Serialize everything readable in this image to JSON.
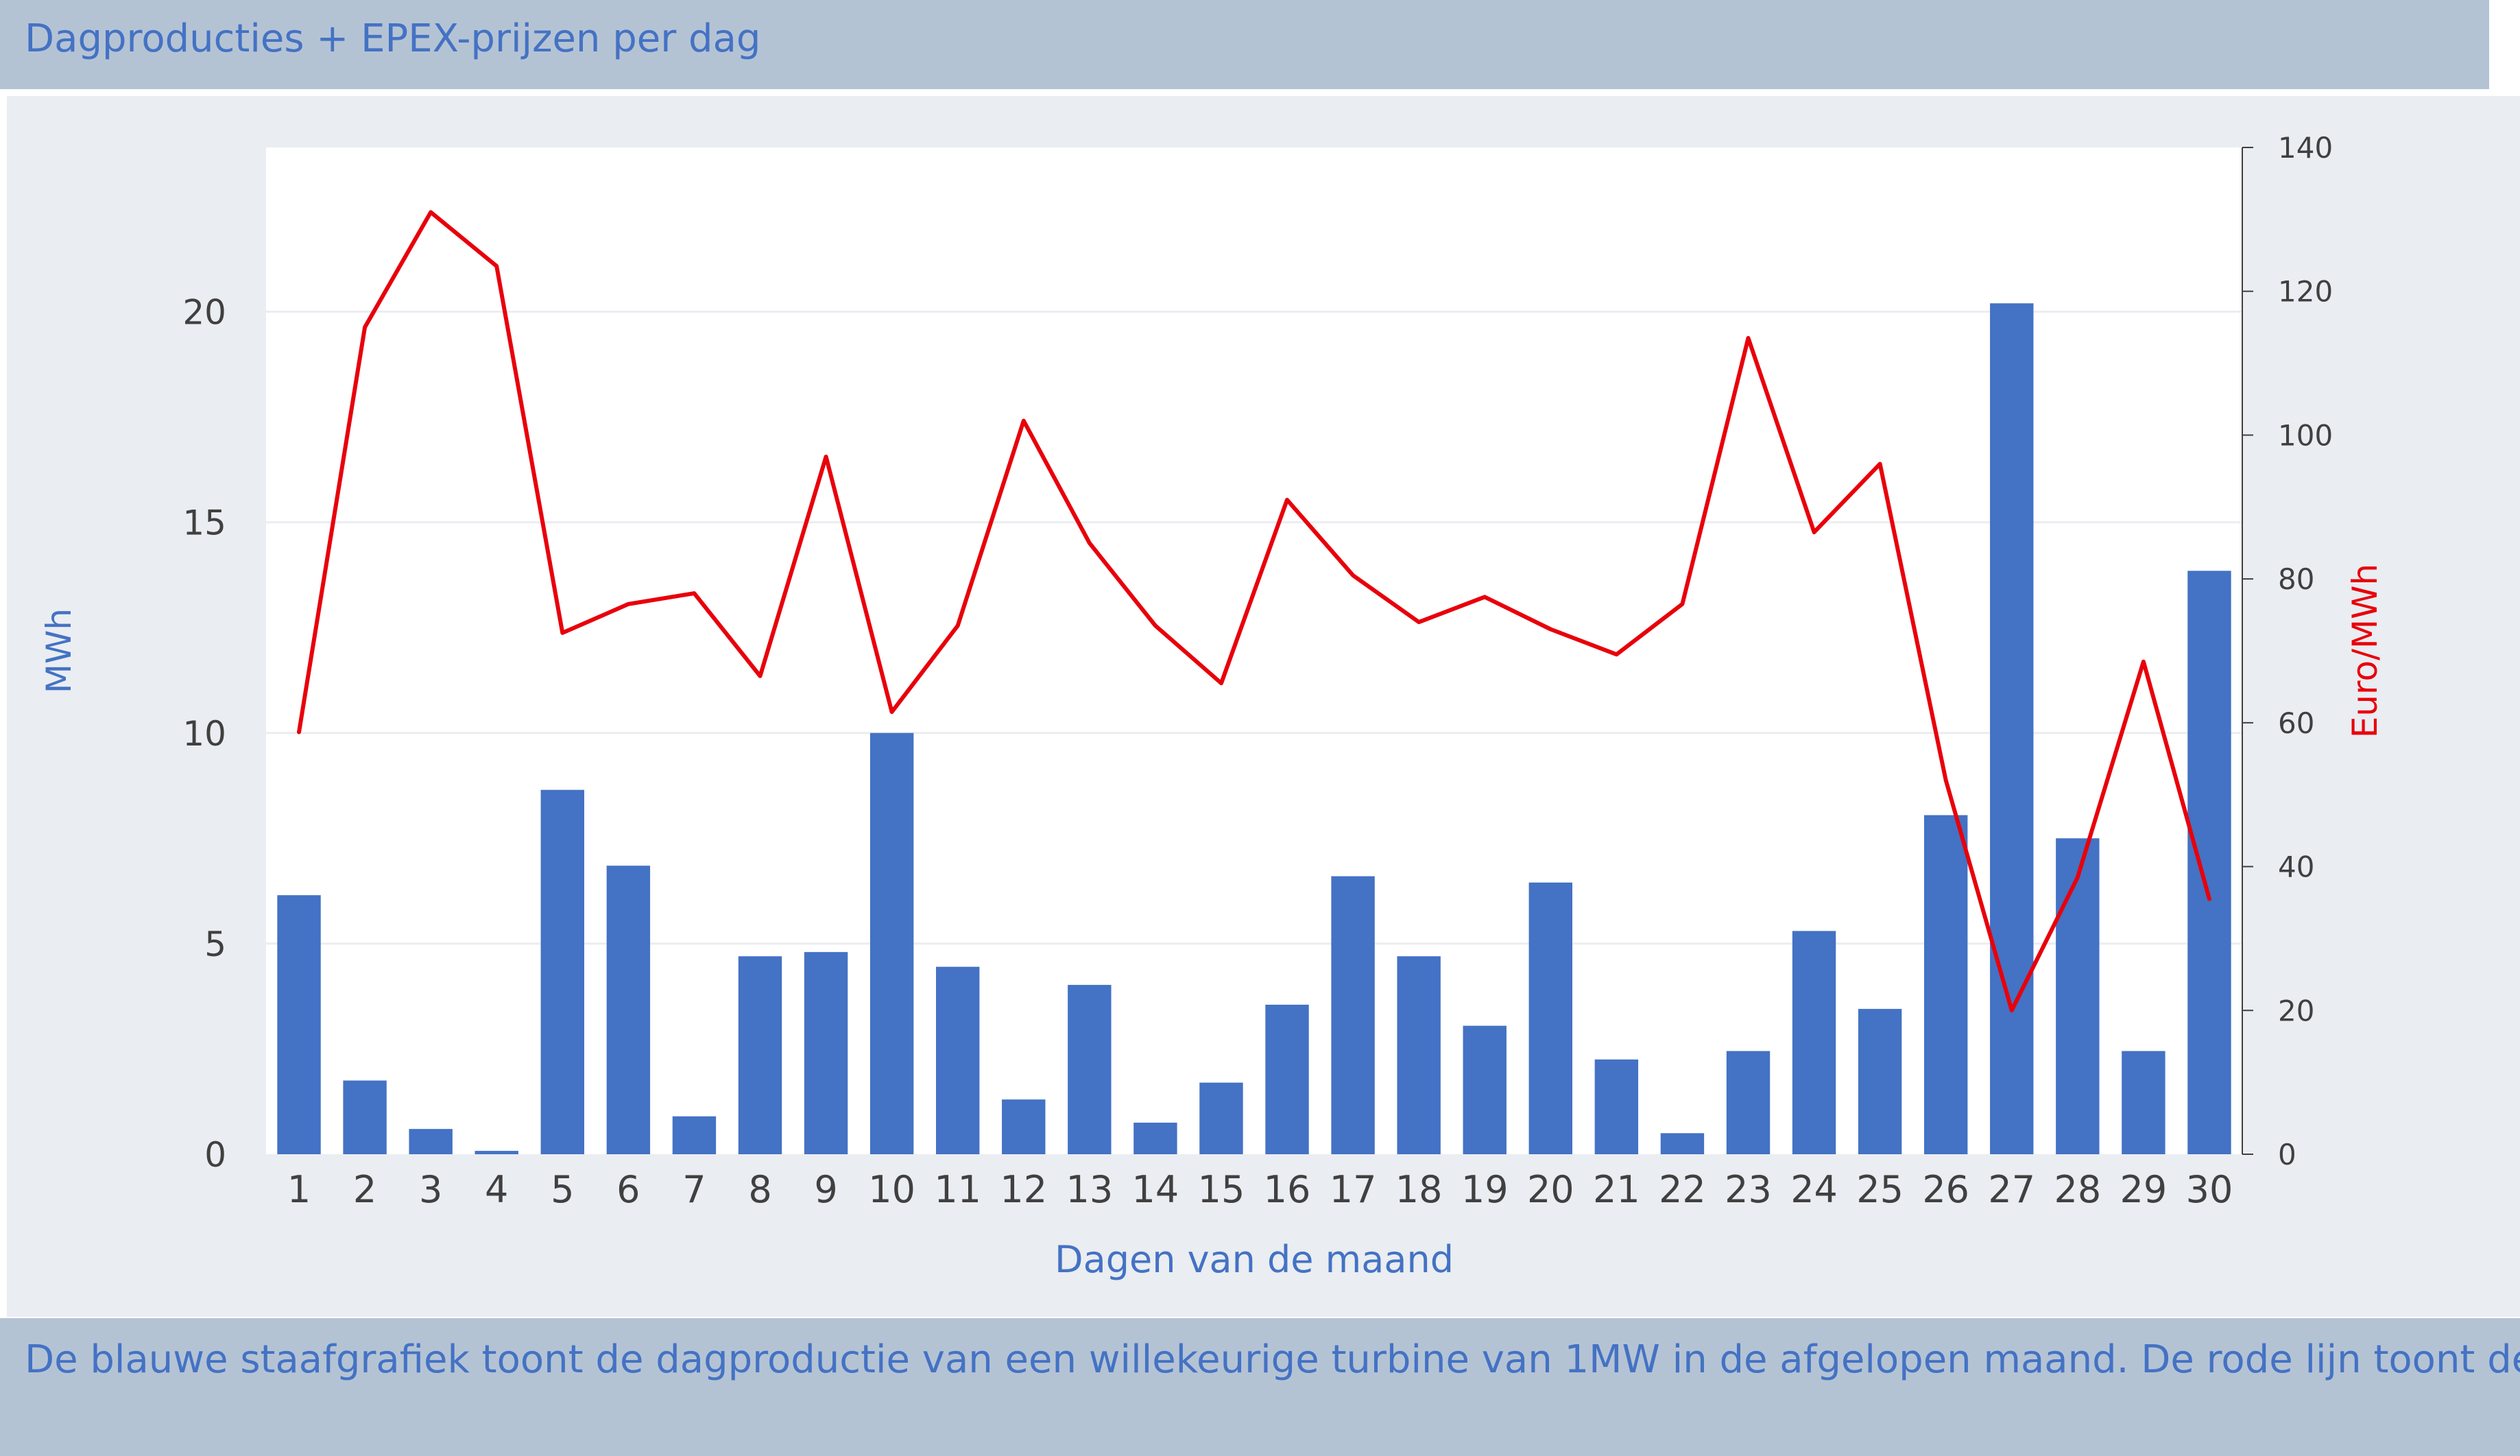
{
  "header": {
    "title": "Dagproducties + EPEX-prijzen per dag"
  },
  "footer": {
    "text": "De blauwe staafgrafiek toont de dagproductie van een willekeurige turbine van 1MW in de afgelopen maand. De rode lijn toont de"
  },
  "colors": {
    "bar": "#4472c4",
    "line": "#e8000b",
    "axis_text": "#404040",
    "label_blue": "#4472c4",
    "label_red": "#e8000b"
  },
  "chart_data": {
    "type": "bar",
    "categories": [
      "1",
      "2",
      "3",
      "4",
      "5",
      "6",
      "7",
      "8",
      "9",
      "10",
      "11",
      "12",
      "13",
      "14",
      "15",
      "16",
      "17",
      "18",
      "19",
      "20",
      "21",
      "22",
      "23",
      "24",
      "25",
      "26",
      "27",
      "28",
      "29",
      "30"
    ],
    "series": [
      {
        "type": "bar",
        "axis": "left",
        "values": [
          6.15,
          1.75,
          0.6,
          0.08,
          8.65,
          6.85,
          0.9,
          4.7,
          4.8,
          10.0,
          4.45,
          1.3,
          4.02,
          0.75,
          1.7,
          3.55,
          6.6,
          4.7,
          3.05,
          6.45,
          2.25,
          0.5,
          2.45,
          5.3,
          3.45,
          8.05,
          20.2,
          7.5,
          2.45,
          13.85
        ]
      },
      {
        "type": "line",
        "axis": "right",
        "values": [
          58.7,
          115,
          131,
          123.5,
          72.5,
          76.5,
          78,
          66.5,
          97,
          61.5,
          73.5,
          102,
          85,
          73.5,
          65.5,
          91,
          80.5,
          74,
          77.5,
          73,
          69.5,
          76.5,
          113.5,
          86.5,
          96,
          52,
          20,
          38.5,
          68.5,
          35.5
        ]
      }
    ],
    "xlabel": "Dagen van de maand",
    "ylabel": "MWh",
    "y2label": "Euro/MWh",
    "ylim": [
      0,
      23.9
    ],
    "y2lim": [
      0,
      140
    ],
    "yticks": [
      "0",
      "5",
      "10",
      "15",
      "20"
    ],
    "y2ticks": [
      "0",
      "20",
      "40",
      "60",
      "80",
      "100",
      "120",
      "140"
    ],
    "grid": true
  }
}
